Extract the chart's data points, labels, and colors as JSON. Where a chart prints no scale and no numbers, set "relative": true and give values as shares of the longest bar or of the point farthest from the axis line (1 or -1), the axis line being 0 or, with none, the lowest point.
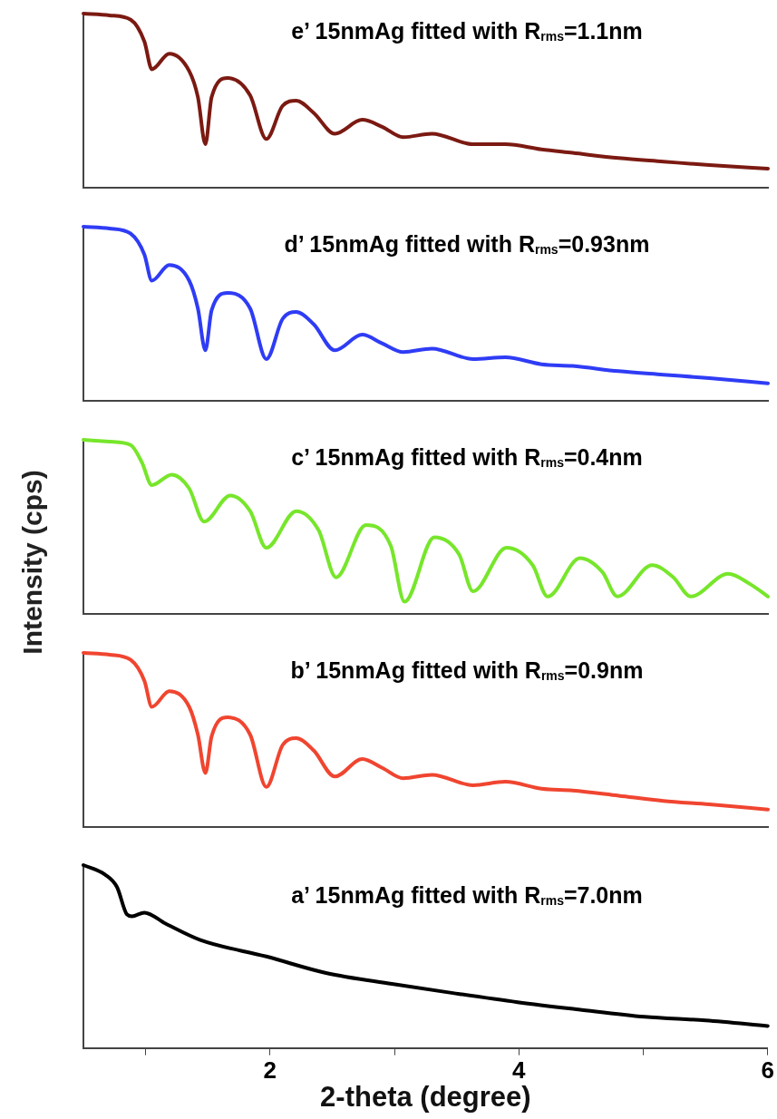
{
  "chart_data": [
    {
      "type": "line",
      "title": "e’ 15nmAg fitted with R$_{rms}$=1.1nm",
      "relative": true,
      "xlim": [
        0.5,
        6
      ],
      "tick_labels": false,
      "grid": false,
      "legend": false,
      "marker": "none",
      "line_style": "solid",
      "series": [
        {
          "color": "#7b1a12",
          "x": [
            0.5,
            0.71,
            0.88,
            0.99,
            1.05,
            1.19,
            1.35,
            1.42,
            1.48,
            1.53,
            1.66,
            1.84,
            1.97,
            2.1,
            2.21,
            2.35,
            2.52,
            2.74,
            2.9,
            3.07,
            3.3,
            3.63,
            3.89,
            4.18,
            4.43,
            4.8,
            5.16,
            5.53,
            6.0
          ],
          "values": [
            1.0,
            0.99,
            0.965,
            0.84,
            0.68,
            0.77,
            0.67,
            0.52,
            0.25,
            0.52,
            0.63,
            0.53,
            0.28,
            0.47,
            0.5,
            0.43,
            0.31,
            0.39,
            0.35,
            0.29,
            0.31,
            0.25,
            0.25,
            0.22,
            0.2,
            0.17,
            0.15,
            0.13,
            0.11
          ]
        }
      ]
    },
    {
      "type": "line",
      "title": "d’ 15nmAg fitted with R$_{rms}$=0.93nm",
      "relative": true,
      "xlim": [
        0.5,
        6
      ],
      "tick_labels": false,
      "grid": false,
      "legend": false,
      "marker": "none",
      "line_style": "solid",
      "series": [
        {
          "color": "#2f3cf5",
          "x": [
            0.5,
            0.71,
            0.88,
            0.99,
            1.05,
            1.19,
            1.35,
            1.42,
            1.48,
            1.53,
            1.66,
            1.84,
            1.97,
            2.1,
            2.21,
            2.35,
            2.52,
            2.74,
            2.9,
            3.07,
            3.3,
            3.63,
            3.89,
            4.18,
            4.43,
            4.8,
            5.16,
            5.53,
            6.0
          ],
          "values": [
            1.0,
            0.99,
            0.96,
            0.84,
            0.69,
            0.78,
            0.69,
            0.53,
            0.29,
            0.52,
            0.62,
            0.53,
            0.24,
            0.47,
            0.51,
            0.44,
            0.29,
            0.38,
            0.33,
            0.28,
            0.3,
            0.24,
            0.25,
            0.21,
            0.2,
            0.17,
            0.15,
            0.13,
            0.1
          ]
        }
      ]
    },
    {
      "type": "line",
      "title": "c’ 15nmAg fitted with R$_{rms}$=0.4nm",
      "ylabel": "Intensity (cps)",
      "relative": true,
      "xlim": [
        0.5,
        6
      ],
      "tick_labels": false,
      "grid": false,
      "legend": false,
      "marker": "none",
      "line_style": "solid",
      "series": [
        {
          "color": "#77e62b",
          "x": [
            0.5,
            0.71,
            0.88,
            0.97,
            1.05,
            1.21,
            1.35,
            1.47,
            1.68,
            1.84,
            1.97,
            2.21,
            2.39,
            2.53,
            2.77,
            2.97,
            3.08,
            3.32,
            3.52,
            3.63,
            3.9,
            4.11,
            4.23,
            4.49,
            4.67,
            4.79,
            5.07,
            5.24,
            5.38,
            5.68,
            5.86,
            6.0
          ],
          "values": [
            1.0,
            0.99,
            0.97,
            0.87,
            0.74,
            0.8,
            0.72,
            0.53,
            0.68,
            0.59,
            0.38,
            0.59,
            0.48,
            0.21,
            0.51,
            0.39,
            0.07,
            0.44,
            0.34,
            0.13,
            0.38,
            0.28,
            0.1,
            0.32,
            0.24,
            0.1,
            0.28,
            0.21,
            0.1,
            0.23,
            0.17,
            0.1
          ]
        }
      ]
    },
    {
      "type": "line",
      "title": "b’ 15nmAg fitted with R$_{rms}$=0.9nm",
      "relative": true,
      "xlim": [
        0.5,
        6
      ],
      "tick_labels": false,
      "grid": false,
      "legend": false,
      "marker": "none",
      "line_style": "solid",
      "series": [
        {
          "color": "#f04530",
          "x": [
            0.5,
            0.71,
            0.88,
            0.99,
            1.05,
            1.19,
            1.35,
            1.42,
            1.48,
            1.53,
            1.66,
            1.84,
            1.97,
            2.1,
            2.21,
            2.35,
            2.52,
            2.74,
            2.9,
            3.07,
            3.3,
            3.63,
            3.89,
            4.18,
            4.43,
            4.8,
            5.16,
            5.53,
            6.0
          ],
          "values": [
            1.0,
            0.99,
            0.96,
            0.84,
            0.69,
            0.78,
            0.69,
            0.53,
            0.31,
            0.52,
            0.63,
            0.53,
            0.23,
            0.47,
            0.51,
            0.44,
            0.29,
            0.39,
            0.34,
            0.28,
            0.3,
            0.24,
            0.26,
            0.22,
            0.21,
            0.18,
            0.15,
            0.13,
            0.1
          ]
        }
      ]
    },
    {
      "type": "line",
      "title": "a’ 15nmAg fitted with R$_{rms}$=7.0nm",
      "xlabel": "2-theta (degree)",
      "relative": true,
      "xlim": [
        0.5,
        6
      ],
      "xticks": [
        {
          "value": 1,
          "label": null
        },
        2,
        {
          "value": 3,
          "label": null
        },
        4,
        {
          "value": 5,
          "label": null
        },
        6
      ],
      "tick_labels": "x",
      "grid": false,
      "legend": false,
      "marker": "none",
      "line_style": "solid",
      "series": [
        {
          "color": "#000000",
          "x": [
            0.5,
            0.67,
            0.77,
            0.85,
            0.89,
            0.99,
            1.16,
            1.44,
            1.97,
            2.45,
            2.98,
            3.47,
            3.99,
            4.48,
            5.01,
            5.5,
            6.0
          ],
          "values": [
            1.0,
            0.95,
            0.88,
            0.73,
            0.72,
            0.74,
            0.68,
            0.59,
            0.5,
            0.41,
            0.35,
            0.3,
            0.25,
            0.21,
            0.17,
            0.15,
            0.12
          ]
        }
      ]
    }
  ]
}
